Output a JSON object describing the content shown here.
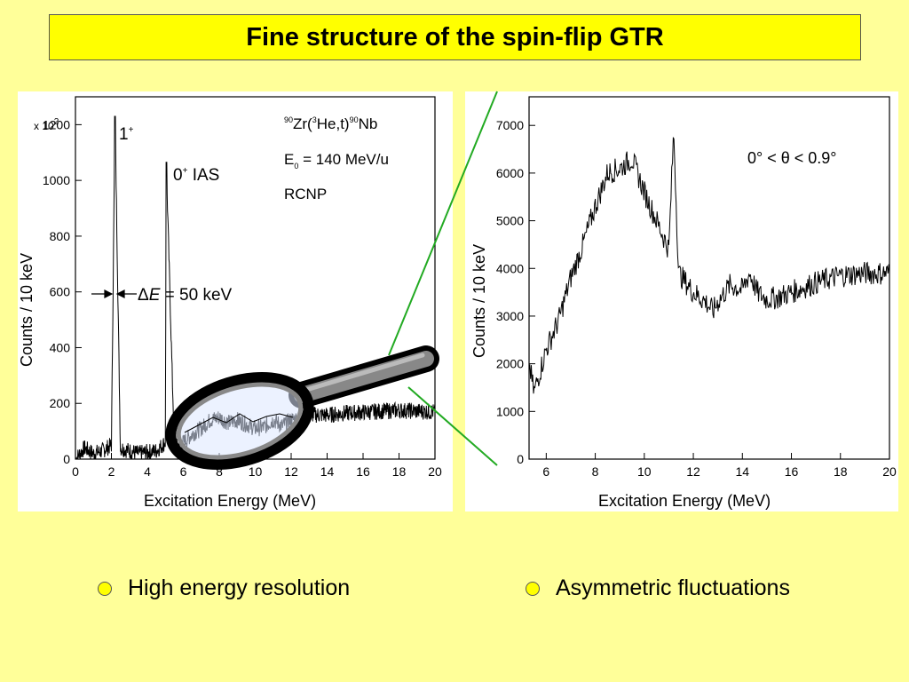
{
  "slide": {
    "title": "Fine structure of the spin-flip GTR",
    "bullets": [
      "High energy resolution",
      "Asymmetric fluctuations"
    ],
    "colors": {
      "background": "#ffff99",
      "title_box": "#ffff00",
      "zoom_lines": "#22aa22"
    }
  },
  "chart_data": [
    {
      "type": "line",
      "xlabel": "Excitation Energy (MeV)",
      "ylabel": "Counts / 10 keV",
      "y_multiplier": "x 10",
      "y_multiplier_exp": "2",
      "xlim": [
        0,
        20
      ],
      "ylim": [
        0,
        1300
      ],
      "xticks": [
        0,
        2,
        4,
        6,
        8,
        10,
        12,
        14,
        16,
        18,
        20
      ],
      "yticks": [
        0,
        200,
        400,
        600,
        800,
        1000,
        1200
      ],
      "annotations": {
        "peak1": "1",
        "peak1_sup": "+",
        "peak2": "0",
        "peak2_sup": "+",
        "peak2_label": " IAS",
        "reaction_sup1": "90",
        "reaction_a": "Zr(",
        "reaction_sup2": "3",
        "reaction_b": "He,t)",
        "reaction_sup3": "90",
        "reaction_c": "Nb",
        "energy_e": "E",
        "energy_sub": "0",
        "energy_val": " = 140 MeV/u",
        "lab": "RCNP",
        "resolution_delta": "Δ",
        "resolution_e": "E",
        "resolution_val": " = 50 keV"
      },
      "peaks": [
        {
          "x": 2.2,
          "y": 1230
        },
        {
          "x": 5.05,
          "y": 1065
        }
      ],
      "x": [
        0,
        0.5,
        1,
        1.5,
        2,
        2.2,
        2.5,
        3,
        3.5,
        4,
        4.5,
        5,
        5.05,
        5.5,
        6,
        6.5,
        7,
        7.5,
        8,
        8.5,
        9,
        9.5,
        10,
        10.5,
        11,
        11.5,
        12,
        13,
        14,
        15,
        16,
        17,
        18,
        19,
        20
      ],
      "y": [
        0,
        40,
        20,
        30,
        50,
        1230,
        40,
        30,
        20,
        25,
        30,
        60,
        1065,
        40,
        60,
        90,
        110,
        140,
        150,
        130,
        140,
        125,
        110,
        115,
        140,
        120,
        140,
        160,
        158,
        165,
        168,
        172,
        175,
        172,
        170
      ]
    },
    {
      "type": "line",
      "xlabel": "Excitation Energy (MeV)",
      "ylabel": "Counts / 10 keV",
      "annotation": "0° < θ <  0.9°",
      "xlim": [
        5.3,
        20
      ],
      "ylim": [
        0,
        7600
      ],
      "xticks": [
        6,
        8,
        10,
        12,
        14,
        16,
        18,
        20
      ],
      "yticks": [
        0,
        1000,
        2000,
        3000,
        4000,
        5000,
        6000,
        7000
      ],
      "x": [
        5.3,
        5.5,
        6,
        6.5,
        7,
        7.5,
        8,
        8.5,
        9,
        9.5,
        10,
        10.5,
        11,
        11.2,
        11.4,
        12,
        12.5,
        12.8,
        13,
        13.5,
        14,
        14.3,
        14.6,
        15,
        15.5,
        16,
        17,
        18,
        19,
        20
      ],
      "y": [
        2000,
        1400,
        2300,
        2900,
        3800,
        4500,
        5300,
        6000,
        6100,
        6300,
        5600,
        5000,
        4400,
        6900,
        3900,
        3500,
        3300,
        3100,
        3300,
        3650,
        3550,
        3900,
        3500,
        3350,
        3400,
        3500,
        3700,
        3850,
        3900,
        3900
      ]
    }
  ]
}
